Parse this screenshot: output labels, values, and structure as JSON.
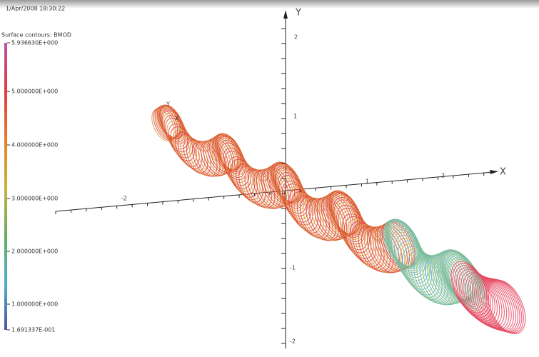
{
  "header": {
    "timestamp": "1/Apr/2008 18:30:22"
  },
  "legend": {
    "title": "Surface contours: BMOD",
    "labels": [
      "5.936630E+000",
      "5.000000E+000",
      "4.000000E+000",
      "3.000000E+000",
      "2.000000E+000",
      "1.000000E+000",
      "1.691337E-001"
    ]
  },
  "axes": {
    "y": {
      "label": "Y",
      "ticks": [
        "2",
        "1",
        "-1",
        "-2"
      ]
    },
    "x": {
      "label": "X",
      "ticks": [
        "-2",
        "1",
        "2"
      ]
    }
  },
  "local_axes": {
    "y": "Y",
    "x": "X"
  }
}
